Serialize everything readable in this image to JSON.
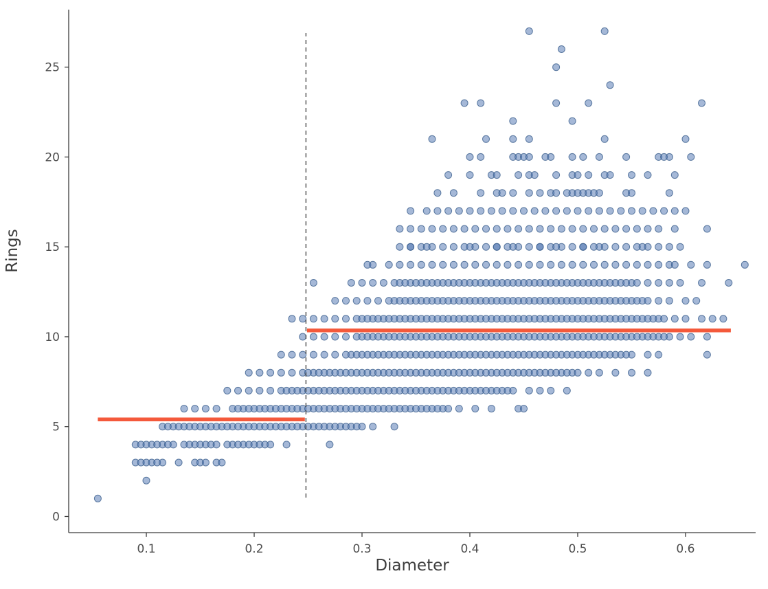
{
  "chart_data": {
    "type": "scatter",
    "title": "",
    "xlabel": "Diameter",
    "ylabel": "Rings",
    "xlim": [
      0.028,
      0.665
    ],
    "ylim": [
      -0.9,
      28.2
    ],
    "xticks": [
      0.1,
      0.2,
      0.3,
      0.4,
      0.5,
      0.6
    ],
    "yticks": [
      0,
      5,
      10,
      15,
      20,
      25
    ],
    "grid": false,
    "legend": "none",
    "marker": {
      "radius": 5,
      "fill": "#4C72B0",
      "fill_opacity": 0.5,
      "edge": "#3A5E8C",
      "edge_opacity": 0.8
    },
    "colors": {
      "scatter": "#4C72B0",
      "step_line": "#F4593B",
      "split_line": "#4a4a4a",
      "axis": "#3c3c3c",
      "tick_label": "#4d4d4d",
      "axis_label": "#3d3d3d",
      "background": "#ffffff"
    },
    "split_line": {
      "x": 0.248,
      "y1": 1.05,
      "y2": 26.9,
      "style": "dashed"
    },
    "step_segments": [
      {
        "x1": 0.055,
        "x2": 0.247,
        "y": 5.4
      },
      {
        "x1": 0.249,
        "x2": 0.642,
        "y": 10.35
      }
    ],
    "points": [
      {
        "rings": 1,
        "x": [
          0.055
        ]
      },
      {
        "rings": 2,
        "x": [
          0.1
        ]
      },
      {
        "rings": 3,
        "x": [
          0.09,
          0.095,
          0.1,
          0.105,
          0.11,
          0.115,
          0.13,
          0.145,
          0.15,
          0.155,
          0.165,
          0.17
        ]
      },
      {
        "rings": 4,
        "runs": [
          [
            0.09,
            0.125,
            0.005
          ],
          [
            0.135,
            0.165,
            0.005
          ],
          [
            0.175,
            0.215,
            0.005
          ]
        ],
        "x": [
          0.23,
          0.27
        ]
      },
      {
        "rings": 5,
        "runs": [
          [
            0.115,
            0.155,
            0.005
          ],
          [
            0.16,
            0.22,
            0.005
          ],
          [
            0.225,
            0.3,
            0.005
          ]
        ],
        "x": [
          0.31,
          0.33
        ]
      },
      {
        "rings": 6,
        "runs": [
          [
            0.135,
            0.17,
            0.01
          ],
          [
            0.18,
            0.25,
            0.005
          ],
          [
            0.255,
            0.38,
            0.005
          ]
        ],
        "x": [
          0.39,
          0.405,
          0.42,
          0.445,
          0.45
        ]
      },
      {
        "rings": 7,
        "runs": [
          [
            0.175,
            0.225,
            0.01
          ],
          [
            0.23,
            0.44,
            0.005
          ]
        ],
        "x": [
          0.455,
          0.465,
          0.475,
          0.49
        ]
      },
      {
        "rings": 8,
        "runs": [
          [
            0.195,
            0.245,
            0.01
          ],
          [
            0.25,
            0.5,
            0.005
          ]
        ],
        "x": [
          0.51,
          0.52,
          0.535,
          0.55,
          0.565
        ]
      },
      {
        "rings": 9,
        "runs": [
          [
            0.225,
            0.275,
            0.01
          ],
          [
            0.285,
            0.55,
            0.005
          ]
        ],
        "x": [
          0.565,
          0.575,
          0.62
        ]
      },
      {
        "rings": 10,
        "runs": [
          [
            0.245,
            0.295,
            0.01
          ],
          [
            0.3,
            0.585,
            0.005
          ]
        ],
        "x": [
          0.595,
          0.605,
          0.62
        ]
      },
      {
        "rings": 11,
        "runs": [
          [
            0.235,
            0.295,
            0.01
          ],
          [
            0.3,
            0.58,
            0.005
          ]
        ],
        "x": [
          0.59,
          0.6,
          0.615,
          0.625,
          0.635
        ]
      },
      {
        "rings": 12,
        "runs": [
          [
            0.275,
            0.325,
            0.01
          ],
          [
            0.33,
            0.565,
            0.005
          ]
        ],
        "x": [
          0.575,
          0.585,
          0.6,
          0.61
        ]
      },
      {
        "rings": 13,
        "runs": [
          [
            0.29,
            0.325,
            0.01
          ],
          [
            0.33,
            0.55,
            0.005
          ],
          [
            0.555,
            0.595,
            0.01
          ]
        ],
        "x": [
          0.255,
          0.615,
          0.64
        ]
      },
      {
        "rings": 14,
        "runs": [
          [
            0.325,
            0.575,
            0.01
          ]
        ],
        "x": [
          0.305,
          0.31,
          0.585,
          0.59,
          0.605,
          0.62,
          0.655
        ]
      },
      {
        "rings": 15,
        "runs": [
          [
            0.335,
            0.595,
            0.01
          ],
          [
            0.36,
            0.56,
            0.04
          ]
        ],
        "x": [
          0.345,
          0.425,
          0.465,
          0.505
        ]
      },
      {
        "rings": 16,
        "runs": [
          [
            0.335,
            0.575,
            0.01
          ]
        ],
        "x": [
          0.59,
          0.62
        ]
      },
      {
        "rings": 17,
        "runs": [
          [
            0.36,
            0.6,
            0.01
          ]
        ],
        "x": [
          0.345
        ]
      },
      {
        "rings": 18,
        "x": [
          0.37,
          0.385,
          0.41,
          0.425,
          0.43,
          0.44,
          0.455,
          0.465,
          0.475,
          0.48,
          0.49,
          0.495,
          0.5,
          0.505,
          0.51,
          0.515,
          0.52,
          0.545,
          0.55,
          0.585
        ]
      },
      {
        "rings": 19,
        "x": [
          0.38,
          0.4,
          0.42,
          0.425,
          0.445,
          0.455,
          0.46,
          0.48,
          0.495,
          0.5,
          0.51,
          0.525,
          0.53,
          0.55,
          0.565,
          0.59
        ]
      },
      {
        "rings": 20,
        "x": [
          0.4,
          0.41,
          0.44,
          0.445,
          0.45,
          0.455,
          0.47,
          0.475,
          0.495,
          0.505,
          0.52,
          0.545,
          0.575,
          0.58,
          0.585,
          0.605
        ]
      },
      {
        "rings": 21,
        "x": [
          0.365,
          0.415,
          0.44,
          0.455,
          0.525,
          0.6
        ]
      },
      {
        "rings": 22,
        "x": [
          0.44,
          0.495
        ]
      },
      {
        "rings": 23,
        "x": [
          0.395,
          0.41,
          0.48,
          0.51,
          0.615
        ]
      },
      {
        "rings": 24,
        "x": [
          0.53
        ]
      },
      {
        "rings": 25,
        "x": [
          0.48
        ]
      },
      {
        "rings": 26,
        "x": [
          0.485
        ]
      },
      {
        "rings": 27,
        "x": [
          0.455,
          0.525
        ]
      }
    ]
  }
}
